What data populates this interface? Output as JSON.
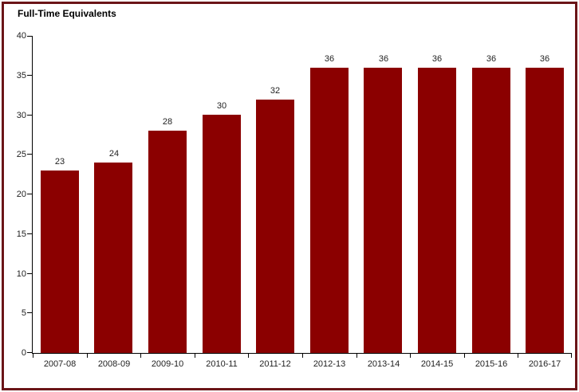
{
  "chart_data": {
    "type": "bar",
    "title": "Full-Time Equivalents",
    "categories": [
      "2007-08",
      "2008-09",
      "2009-10",
      "2010-11",
      "2011-12",
      "2012-13",
      "2013-14",
      "2014-15",
      "2015-16",
      "2016-17"
    ],
    "values": [
      23,
      24,
      28,
      30,
      32,
      36,
      36,
      36,
      36,
      36
    ],
    "xlabel": "",
    "ylabel": "",
    "ylim": [
      0,
      40
    ],
    "ytick_step": 5,
    "grid": false,
    "legend": "none",
    "data_labels": true,
    "colors": {
      "bar": "#8B0000",
      "frame_border": "#6B1518",
      "axis": "#000000",
      "label_text": "#1f1f1f",
      "background": "#ffffff"
    }
  }
}
